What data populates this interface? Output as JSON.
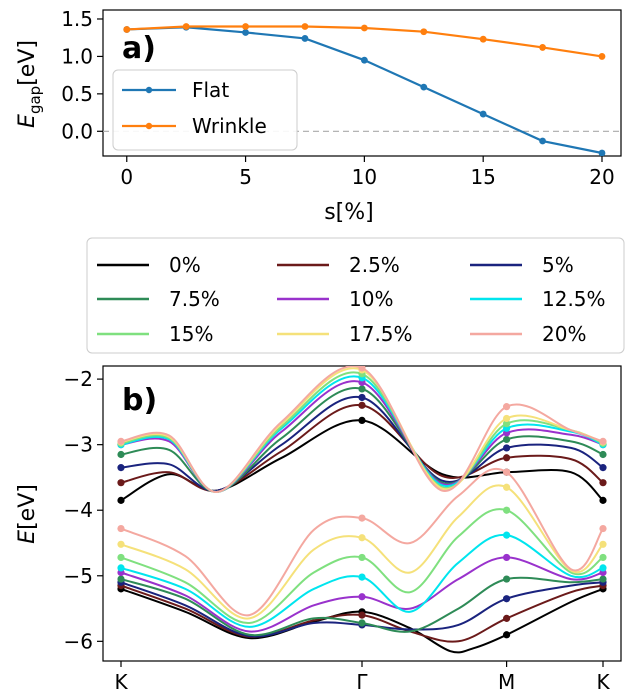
{
  "chart_data": [
    {
      "type": "line",
      "panel_label": "a)",
      "xlabel": "s[%]",
      "ylabel_main": "E",
      "ylabel_sub": "gap",
      "ylabel_unit": "[eV]",
      "xlim": [
        -1,
        20.8
      ],
      "ylim": [
        -0.33,
        1.62
      ],
      "xticks": [
        0,
        5,
        10,
        15,
        20
      ],
      "xtick_labels": [
        "0",
        "5",
        "10",
        "15",
        "20"
      ],
      "yticks": [
        0.0,
        0.5,
        1.0,
        1.5
      ],
      "ytick_labels": [
        "0.0",
        "0.5",
        "1.0",
        "1.5"
      ],
      "reference_line_y": 0,
      "legend_position": "left",
      "x": [
        0,
        2.5,
        5,
        7.5,
        10,
        12.5,
        15,
        17.5,
        20
      ],
      "series": [
        {
          "name": "Flat",
          "color": "#1f77b4",
          "values": [
            1.36,
            1.39,
            1.32,
            1.24,
            0.95,
            0.59,
            0.23,
            -0.13,
            -0.29
          ]
        },
        {
          "name": "Wrinkle",
          "color": "#ff7f0e",
          "values": [
            1.36,
            1.4,
            1.4,
            1.4,
            1.38,
            1.33,
            1.23,
            1.12,
            1.0
          ]
        }
      ]
    },
    {
      "type": "line",
      "panel_label": "b)",
      "ylabel_main": "E",
      "ylabel_unit": "[eV]",
      "xlim": [
        0,
        3
      ],
      "ylim": [
        -6.3,
        -1.8
      ],
      "xticks": [
        0,
        1.5,
        2.4,
        3
      ],
      "xtick_labels": [
        "K",
        "Γ",
        "M",
        "K"
      ],
      "yticks": [
        -6,
        -5,
        -4,
        -3,
        -2
      ],
      "ytick_labels": [
        "−6",
        "−5",
        "−4",
        "−3",
        "−2"
      ],
      "legend_position": "top, outside",
      "series": [
        {
          "name": "0%",
          "color": "#000000",
          "conduction": [
            [
              0,
              -3.85
            ],
            [
              0.3,
              -3.45
            ],
            [
              0.6,
              -3.7
            ],
            [
              1.0,
              -3.2
            ],
            [
              1.5,
              -2.63
            ],
            [
              2.0,
              -3.45
            ],
            [
              2.4,
              -3.42
            ],
            [
              2.8,
              -3.42
            ],
            [
              3.0,
              -3.85
            ]
          ],
          "valence": [
            [
              0,
              -5.2
            ],
            [
              0.4,
              -5.55
            ],
            [
              0.8,
              -5.95
            ],
            [
              1.2,
              -5.7
            ],
            [
              1.5,
              -5.55
            ],
            [
              1.8,
              -5.8
            ],
            [
              2.05,
              -6.15
            ],
            [
              2.2,
              -6.1
            ],
            [
              2.4,
              -5.9
            ],
            [
              2.8,
              -5.4
            ],
            [
              3.0,
              -5.2
            ]
          ]
        },
        {
          "name": "2.5%",
          "color": "#6b1a1a",
          "conduction": [
            [
              0,
              -3.58
            ],
            [
              0.3,
              -3.42
            ],
            [
              0.6,
              -3.7
            ],
            [
              1.0,
              -3.1
            ],
            [
              1.5,
              -2.4
            ],
            [
              2.0,
              -3.48
            ],
            [
              2.4,
              -3.2
            ],
            [
              2.8,
              -3.22
            ],
            [
              3.0,
              -3.58
            ]
          ],
          "valence": [
            [
              0,
              -5.15
            ],
            [
              0.4,
              -5.5
            ],
            [
              0.8,
              -5.93
            ],
            [
              1.2,
              -5.68
            ],
            [
              1.5,
              -5.6
            ],
            [
              1.8,
              -5.85
            ],
            [
              2.1,
              -6.0
            ],
            [
              2.4,
              -5.65
            ],
            [
              2.8,
              -5.25
            ],
            [
              3.0,
              -5.15
            ]
          ]
        },
        {
          "name": "5%",
          "color": "#1a237e",
          "conduction": [
            [
              0,
              -3.35
            ],
            [
              0.3,
              -3.3
            ],
            [
              0.6,
              -3.7
            ],
            [
              1.0,
              -3.0
            ],
            [
              1.5,
              -2.28
            ],
            [
              2.0,
              -3.55
            ],
            [
              2.4,
              -3.05
            ],
            [
              2.8,
              -3.05
            ],
            [
              3.0,
              -3.35
            ]
          ],
          "valence": [
            [
              0,
              -5.1
            ],
            [
              0.4,
              -5.45
            ],
            [
              0.8,
              -5.92
            ],
            [
              1.2,
              -5.72
            ],
            [
              1.5,
              -5.75
            ],
            [
              1.8,
              -5.82
            ],
            [
              2.1,
              -5.75
            ],
            [
              2.4,
              -5.35
            ],
            [
              2.8,
              -5.15
            ],
            [
              3.0,
              -5.1
            ]
          ]
        },
        {
          "name": "7.5%",
          "color": "#2e8b57",
          "conduction": [
            [
              0,
              -3.15
            ],
            [
              0.3,
              -3.08
            ],
            [
              0.6,
              -3.72
            ],
            [
              1.0,
              -2.9
            ],
            [
              1.5,
              -2.15
            ],
            [
              2.0,
              -3.58
            ],
            [
              2.4,
              -2.92
            ],
            [
              2.8,
              -2.95
            ],
            [
              3.0,
              -3.15
            ]
          ],
          "valence": [
            [
              0,
              -5.05
            ],
            [
              0.4,
              -5.35
            ],
            [
              0.8,
              -5.9
            ],
            [
              1.2,
              -5.65
            ],
            [
              1.5,
              -5.72
            ],
            [
              1.8,
              -5.85
            ],
            [
              2.1,
              -5.5
            ],
            [
              2.4,
              -5.05
            ],
            [
              2.8,
              -5.1
            ],
            [
              3.0,
              -5.05
            ]
          ]
        },
        {
          "name": "10%",
          "color": "#9932cc",
          "conduction": [
            [
              0,
              -3.0
            ],
            [
              0.3,
              -2.95
            ],
            [
              0.6,
              -3.72
            ],
            [
              1.0,
              -2.8
            ],
            [
              1.5,
              -2.05
            ],
            [
              2.0,
              -3.6
            ],
            [
              2.4,
              -2.82
            ],
            [
              2.8,
              -2.85
            ],
            [
              3.0,
              -3.0
            ]
          ],
          "valence": [
            [
              0,
              -4.95
            ],
            [
              0.4,
              -5.3
            ],
            [
              0.8,
              -5.85
            ],
            [
              1.2,
              -5.45
            ],
            [
              1.5,
              -5.32
            ],
            [
              1.8,
              -5.5
            ],
            [
              2.1,
              -5.05
            ],
            [
              2.4,
              -4.72
            ],
            [
              2.8,
              -5.05
            ],
            [
              3.0,
              -4.95
            ]
          ]
        },
        {
          "name": "12.5%",
          "color": "#00e5ee",
          "conduction": [
            [
              0,
              -3.0
            ],
            [
              0.3,
              -2.92
            ],
            [
              0.6,
              -3.72
            ],
            [
              1.0,
              -2.75
            ],
            [
              1.5,
              -1.98
            ],
            [
              2.0,
              -3.62
            ],
            [
              2.4,
              -2.75
            ],
            [
              2.8,
              -2.8
            ],
            [
              3.0,
              -3.0
            ]
          ],
          "valence": [
            [
              0,
              -4.88
            ],
            [
              0.4,
              -5.2
            ],
            [
              0.8,
              -5.78
            ],
            [
              1.2,
              -5.2
            ],
            [
              1.5,
              -5.02
            ],
            [
              1.8,
              -5.55
            ],
            [
              2.1,
              -4.8
            ],
            [
              2.4,
              -4.38
            ],
            [
              2.8,
              -5.0
            ],
            [
              3.0,
              -4.88
            ]
          ]
        },
        {
          "name": "15%",
          "color": "#7fe07f",
          "conduction": [
            [
              0,
              -2.98
            ],
            [
              0.3,
              -2.9
            ],
            [
              0.6,
              -3.72
            ],
            [
              1.0,
              -2.72
            ],
            [
              1.5,
              -1.92
            ],
            [
              2.0,
              -3.65
            ],
            [
              2.4,
              -2.68
            ],
            [
              2.8,
              -2.78
            ],
            [
              3.0,
              -2.98
            ]
          ],
          "valence": [
            [
              0,
              -4.72
            ],
            [
              0.4,
              -5.1
            ],
            [
              0.8,
              -5.72
            ],
            [
              1.2,
              -4.95
            ],
            [
              1.5,
              -4.72
            ],
            [
              1.8,
              -5.25
            ],
            [
              2.1,
              -4.4
            ],
            [
              2.4,
              -4.0
            ],
            [
              2.8,
              -4.95
            ],
            [
              3.0,
              -4.72
            ]
          ]
        },
        {
          "name": "17.5%",
          "color": "#f5e17a",
          "conduction": [
            [
              0,
              -2.96
            ],
            [
              0.3,
              -2.88
            ],
            [
              0.6,
              -3.72
            ],
            [
              1.0,
              -2.68
            ],
            [
              1.5,
              -1.86
            ],
            [
              2.0,
              -3.67
            ],
            [
              2.4,
              -2.6
            ],
            [
              2.8,
              -2.78
            ],
            [
              3.0,
              -2.96
            ]
          ],
          "valence": [
            [
              0,
              -4.52
            ],
            [
              0.4,
              -4.9
            ],
            [
              0.8,
              -5.65
            ],
            [
              1.2,
              -4.6
            ],
            [
              1.5,
              -4.42
            ],
            [
              1.8,
              -4.95
            ],
            [
              2.1,
              -4.1
            ],
            [
              2.4,
              -3.65
            ],
            [
              2.8,
              -4.92
            ],
            [
              3.0,
              -4.52
            ]
          ]
        },
        {
          "name": "20%",
          "color": "#f4a8a0",
          "conduction": [
            [
              0,
              -2.95
            ],
            [
              0.3,
              -2.86
            ],
            [
              0.6,
              -3.72
            ],
            [
              1.0,
              -2.65
            ],
            [
              1.5,
              -1.83
            ],
            [
              2.0,
              -3.7
            ],
            [
              2.4,
              -2.42
            ],
            [
              2.8,
              -2.78
            ],
            [
              3.0,
              -2.95
            ]
          ],
          "valence": [
            [
              0,
              -4.28
            ],
            [
              0.4,
              -4.7
            ],
            [
              0.8,
              -5.6
            ],
            [
              1.2,
              -4.3
            ],
            [
              1.5,
              -4.12
            ],
            [
              1.8,
              -4.5
            ],
            [
              2.1,
              -3.78
            ],
            [
              2.4,
              -3.42
            ],
            [
              2.8,
              -4.9
            ],
            [
              3.0,
              -4.28
            ]
          ]
        }
      ]
    }
  ]
}
